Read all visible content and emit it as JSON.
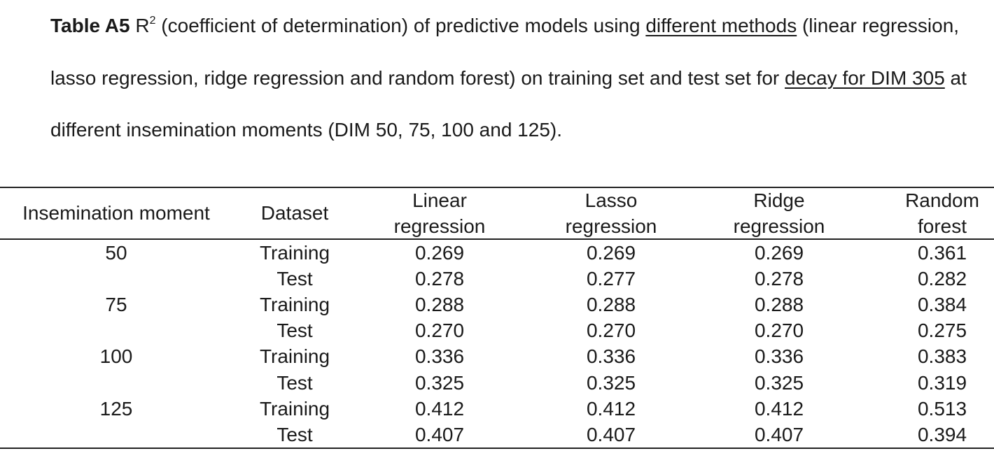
{
  "caption": {
    "label": "Table A5",
    "r": "R",
    "sup": "2",
    "part1": " (coefficient of determination) of predictive models using ",
    "link1": "different methods",
    "part2": " (linear regression, lasso regression, ridge regression and random forest) on training set and test set for ",
    "link2": "decay for DIM 305",
    "part3": " at different insemination moments (DIM 50, 75, 100 and 125)."
  },
  "table": {
    "headers": [
      {
        "l1": "Insemination moment",
        "l2": ""
      },
      {
        "l1": "Dataset",
        "l2": ""
      },
      {
        "l1": "Linear",
        "l2": "regression"
      },
      {
        "l1": "Lasso",
        "l2": "regression"
      },
      {
        "l1": "Ridge",
        "l2": "regression"
      },
      {
        "l1": "Random",
        "l2": "forest"
      }
    ],
    "rows": [
      [
        "50",
        "Training",
        "0.269",
        "0.269",
        "0.269",
        "0.361"
      ],
      [
        "",
        "Test",
        "0.278",
        "0.277",
        "0.278",
        "0.282"
      ],
      [
        "75",
        "Training",
        "0.288",
        "0.288",
        "0.288",
        "0.384"
      ],
      [
        "",
        "Test",
        "0.270",
        "0.270",
        "0.270",
        "0.275"
      ],
      [
        "100",
        "Training",
        "0.336",
        "0.336",
        "0.336",
        "0.383"
      ],
      [
        "",
        "Test",
        "0.325",
        "0.325",
        "0.325",
        "0.319"
      ],
      [
        "125",
        "Training",
        "0.412",
        "0.412",
        "0.412",
        "0.513"
      ],
      [
        "",
        "Test",
        "0.407",
        "0.407",
        "0.407",
        "0.394"
      ]
    ]
  }
}
